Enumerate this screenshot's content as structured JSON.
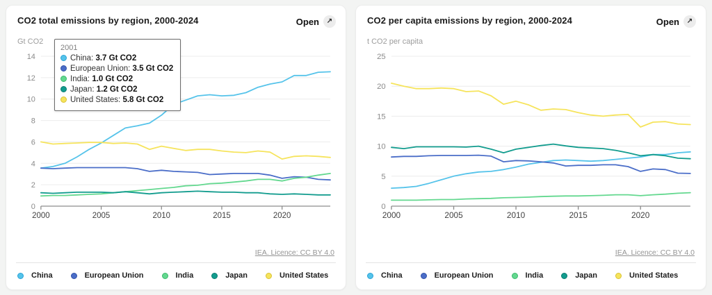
{
  "cards": [
    {
      "title": "CO2 total emissions by region, 2000-2024",
      "open_label": "Open",
      "open_icon": "↗",
      "unit_label": "Gt CO2",
      "attribution": "IEA. Licence: CC BY 4.0",
      "tooltip": {
        "year": "2001",
        "rows": [
          {
            "name": "China",
            "value": "3.7 Gt CO2"
          },
          {
            "name": "European Union",
            "value": "3.5 Gt CO2"
          },
          {
            "name": "India",
            "value": "1.0 Gt CO2"
          },
          {
            "name": "Japan",
            "value": "1.2 Gt CO2"
          },
          {
            "name": "United States",
            "value": "5.8 Gt CO2"
          }
        ]
      }
    },
    {
      "title": "CO2 per capita emissions by region, 2000-2024",
      "open_label": "Open",
      "open_icon": "↗",
      "unit_label": "t CO2 per capita",
      "attribution": "IEA. Licence: CC BY 4.0",
      "tooltip": null
    }
  ],
  "chart_data": [
    {
      "type": "line",
      "title": "CO2 total emissions by region, 2000-2024",
      "xlabel": "",
      "ylabel": "Gt CO2",
      "ylim": [
        0,
        14
      ],
      "y_ticks": [
        0,
        2,
        4,
        6,
        8,
        10,
        12,
        14
      ],
      "x_ticks": [
        2000,
        2005,
        2010,
        2015,
        2020
      ],
      "grid": "horizontal",
      "legend_position": "bottom",
      "x": [
        2000,
        2001,
        2002,
        2003,
        2004,
        2005,
        2006,
        2007,
        2008,
        2009,
        2010,
        2011,
        2012,
        2013,
        2014,
        2015,
        2016,
        2017,
        2018,
        2019,
        2020,
        2021,
        2022,
        2023,
        2024
      ],
      "series": [
        {
          "name": "China",
          "color": "#55c3ea",
          "dot_border": "#29a3d6",
          "values": [
            3.55,
            3.7,
            4.0,
            4.6,
            5.3,
            5.9,
            6.6,
            7.3,
            7.5,
            7.75,
            8.5,
            9.5,
            9.9,
            10.3,
            10.4,
            10.3,
            10.35,
            10.6,
            11.1,
            11.4,
            11.6,
            12.2,
            12.2,
            12.5,
            12.55
          ]
        },
        {
          "name": "European Union",
          "color": "#4a6dc8",
          "dot_border": "#3453a8",
          "values": [
            3.55,
            3.5,
            3.55,
            3.6,
            3.6,
            3.6,
            3.6,
            3.6,
            3.5,
            3.25,
            3.35,
            3.25,
            3.2,
            3.15,
            2.95,
            3.0,
            3.05,
            3.05,
            3.05,
            2.9,
            2.6,
            2.75,
            2.7,
            2.5,
            2.45
          ]
        },
        {
          "name": "India",
          "color": "#63d88f",
          "dot_border": "#3cba6c",
          "values": [
            0.95,
            1.0,
            1.0,
            1.05,
            1.1,
            1.15,
            1.25,
            1.35,
            1.45,
            1.55,
            1.65,
            1.75,
            1.9,
            1.95,
            2.1,
            2.15,
            2.25,
            2.35,
            2.5,
            2.5,
            2.35,
            2.6,
            2.7,
            2.9,
            3.05
          ]
        },
        {
          "name": "Japan",
          "color": "#129c8e",
          "dot_border": "#0b7b6f",
          "values": [
            1.25,
            1.2,
            1.25,
            1.3,
            1.3,
            1.3,
            1.25,
            1.35,
            1.25,
            1.15,
            1.25,
            1.3,
            1.35,
            1.4,
            1.35,
            1.3,
            1.3,
            1.25,
            1.25,
            1.15,
            1.1,
            1.15,
            1.1,
            1.05,
            1.05
          ]
        },
        {
          "name": "United States",
          "color": "#f6e45c",
          "dot_border": "#d9c234",
          "values": [
            6.0,
            5.8,
            5.85,
            5.9,
            5.95,
            5.95,
            5.85,
            5.9,
            5.8,
            5.3,
            5.6,
            5.4,
            5.2,
            5.3,
            5.3,
            5.15,
            5.05,
            5.0,
            5.15,
            5.05,
            4.4,
            4.65,
            4.7,
            4.65,
            4.55
          ]
        }
      ]
    },
    {
      "type": "line",
      "title": "CO2 per capita emissions by region, 2000-2024",
      "xlabel": "",
      "ylabel": "t CO2 per capita",
      "ylim": [
        0,
        25
      ],
      "y_ticks": [
        0,
        5,
        10,
        15,
        20,
        25
      ],
      "x_ticks": [
        2000,
        2005,
        2010,
        2015,
        2020
      ],
      "grid": "horizontal",
      "legend_position": "bottom",
      "x": [
        2000,
        2001,
        2002,
        2003,
        2004,
        2005,
        2006,
        2007,
        2008,
        2009,
        2010,
        2011,
        2012,
        2013,
        2014,
        2015,
        2016,
        2017,
        2018,
        2019,
        2020,
        2021,
        2022,
        2023,
        2024
      ],
      "series": [
        {
          "name": "China",
          "color": "#55c3ea",
          "dot_border": "#29a3d6",
          "values": [
            3.0,
            3.1,
            3.3,
            3.8,
            4.4,
            5.0,
            5.4,
            5.7,
            5.8,
            6.1,
            6.5,
            7.0,
            7.3,
            7.6,
            7.7,
            7.6,
            7.5,
            7.6,
            7.8,
            8.0,
            8.2,
            8.6,
            8.6,
            8.9,
            9.05
          ]
        },
        {
          "name": "European Union",
          "color": "#4a6dc8",
          "dot_border": "#3453a8",
          "values": [
            8.2,
            8.3,
            8.3,
            8.4,
            8.45,
            8.45,
            8.45,
            8.5,
            8.35,
            7.4,
            7.6,
            7.55,
            7.4,
            7.2,
            6.7,
            6.8,
            6.8,
            6.9,
            6.9,
            6.6,
            5.8,
            6.2,
            6.1,
            5.5,
            5.45
          ]
        },
        {
          "name": "India",
          "color": "#63d88f",
          "dot_border": "#3cba6c",
          "values": [
            1.0,
            1.0,
            1.0,
            1.05,
            1.1,
            1.1,
            1.2,
            1.25,
            1.3,
            1.4,
            1.45,
            1.5,
            1.6,
            1.65,
            1.7,
            1.7,
            1.75,
            1.8,
            1.9,
            1.9,
            1.75,
            1.9,
            2.0,
            2.15,
            2.25
          ]
        },
        {
          "name": "Japan",
          "color": "#129c8e",
          "dot_border": "#0b7b6f",
          "values": [
            9.8,
            9.6,
            9.9,
            9.9,
            9.9,
            9.9,
            9.85,
            10.0,
            9.5,
            8.9,
            9.5,
            9.8,
            10.1,
            10.35,
            10.05,
            9.8,
            9.7,
            9.6,
            9.3,
            8.9,
            8.4,
            8.6,
            8.4,
            8.0,
            7.9
          ]
        },
        {
          "name": "United States",
          "color": "#f6e45c",
          "dot_border": "#d9c234",
          "values": [
            20.5,
            20.0,
            19.6,
            19.6,
            19.7,
            19.6,
            19.1,
            19.2,
            18.4,
            17.0,
            17.5,
            16.9,
            16.0,
            16.2,
            16.1,
            15.6,
            15.2,
            15.0,
            15.2,
            15.3,
            13.2,
            14.0,
            14.1,
            13.7,
            13.6
          ]
        }
      ]
    }
  ]
}
